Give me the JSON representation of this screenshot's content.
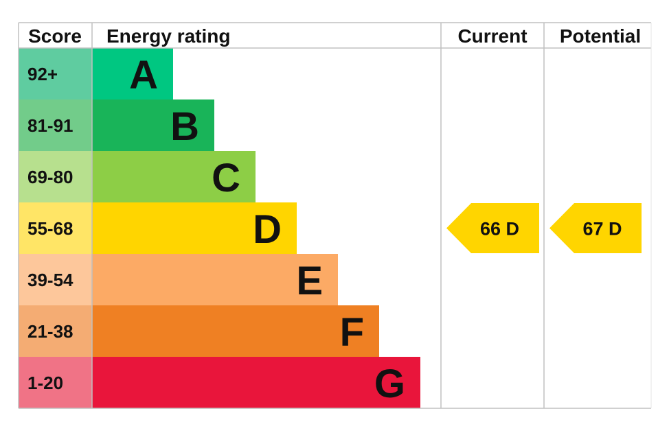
{
  "chart_data": {
    "type": "bar",
    "headers": {
      "score": "Score",
      "rating": "Energy rating",
      "current": "Current",
      "potential": "Potential"
    },
    "bands": [
      {
        "letter": "A",
        "range": "92+",
        "color": "#00c781",
        "score_color": "#5fcca0"
      },
      {
        "letter": "B",
        "range": "81-91",
        "color": "#19b459",
        "score_color": "#72cc8a"
      },
      {
        "letter": "C",
        "range": "69-80",
        "color": "#8dce46",
        "score_color": "#b7e08e"
      },
      {
        "letter": "D",
        "range": "55-68",
        "color": "#ffd500",
        "score_color": "#ffe566"
      },
      {
        "letter": "E",
        "range": "39-54",
        "color": "#fcaa65",
        "score_color": "#fdc79b"
      },
      {
        "letter": "F",
        "range": "21-38",
        "color": "#ef8023",
        "score_color": "#f4ac73"
      },
      {
        "letter": "G",
        "range": "1-20",
        "color": "#e9153b",
        "score_color": "#f07386"
      }
    ],
    "current": {
      "value": 66,
      "band": "D",
      "label": "66  D"
    },
    "potential": {
      "value": 67,
      "band": "D",
      "label": "67  D"
    }
  }
}
